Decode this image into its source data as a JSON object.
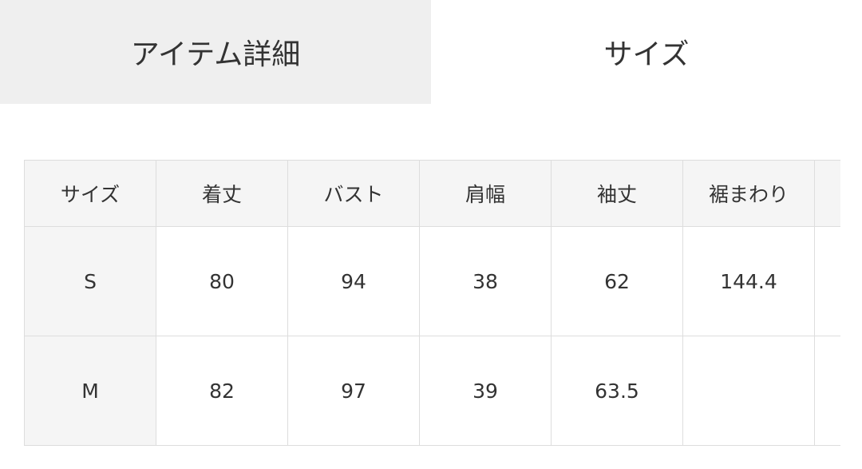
{
  "tabs": {
    "items": [
      "アイテム詳細",
      "サイズ"
    ],
    "active": 1
  },
  "table": {
    "header": [
      "サイズ",
      "着丈",
      "バスト",
      "肩幅",
      "袖丈",
      "裾まわり"
    ],
    "rows": [
      [
        "S",
        "80",
        "94",
        "38",
        "62",
        "144.4"
      ],
      [
        "M",
        "82",
        "97",
        "39",
        "63.5",
        null
      ]
    ]
  }
}
